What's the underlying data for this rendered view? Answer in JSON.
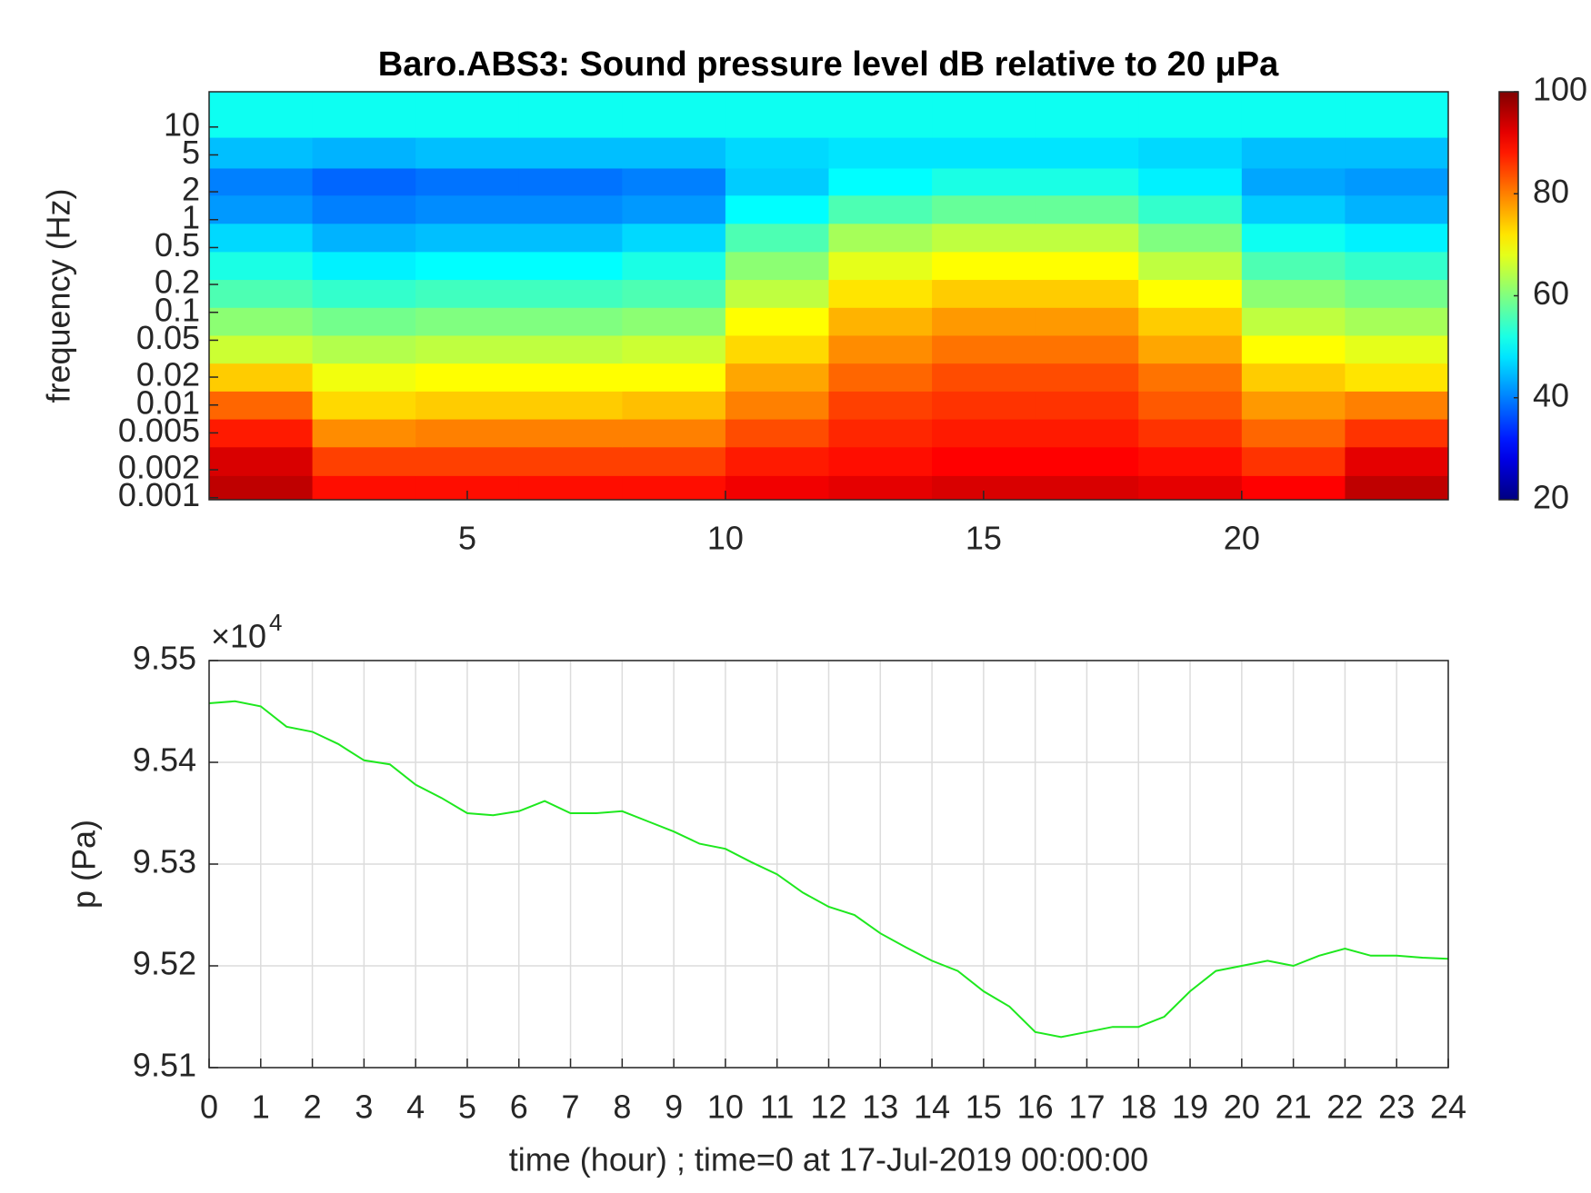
{
  "chart_data": [
    {
      "type": "heatmap",
      "title": "Baro.ABS3: Sound pressure level dB relative to 20 μPa",
      "ylabel": "frequency (Hz)",
      "yscale": "log",
      "colormap": "jet",
      "clim": [
        20,
        100
      ],
      "cticks": [
        20,
        40,
        60,
        80,
        100
      ],
      "xlim": [
        0,
        24
      ],
      "ylim": [
        0.00095,
        24
      ],
      "xticks": [
        5,
        10,
        15,
        20
      ],
      "yticks": [
        0.001,
        0.002,
        0.005,
        0.01,
        0.02,
        0.05,
        0.1,
        0.2,
        0.5,
        1,
        2,
        5,
        10
      ],
      "x": [
        1,
        3,
        5,
        7,
        9,
        11,
        13,
        15,
        17,
        19,
        21,
        23
      ],
      "y": [
        0.0012,
        0.0025,
        0.005,
        0.01,
        0.02,
        0.04,
        0.08,
        0.16,
        0.32,
        0.64,
        1.3,
        2.6,
        5,
        12
      ],
      "z": [
        [
          95,
          89,
          89,
          89,
          89,
          91,
          92,
          93,
          93,
          92,
          90,
          95
        ],
        [
          93,
          85,
          85,
          85,
          85,
          88,
          89,
          90,
          90,
          89,
          86,
          92
        ],
        [
          88,
          79,
          80,
          80,
          80,
          84,
          87,
          88,
          88,
          86,
          82,
          86
        ],
        [
          82,
          73,
          74,
          74,
          75,
          80,
          85,
          86,
          86,
          83,
          78,
          80
        ],
        [
          74,
          69,
          70,
          70,
          70,
          77,
          82,
          84,
          84,
          81,
          74,
          72
        ],
        [
          66,
          64,
          65,
          65,
          66,
          73,
          79,
          81,
          81,
          77,
          70,
          68
        ],
        [
          61,
          59,
          60,
          60,
          61,
          70,
          76,
          78,
          78,
          74,
          65,
          63
        ],
        [
          56,
          54,
          55,
          55,
          56,
          65,
          72,
          74,
          74,
          70,
          61,
          59
        ],
        [
          52,
          49,
          50,
          50,
          52,
          61,
          68,
          70,
          70,
          65,
          56,
          54
        ],
        [
          47,
          44,
          45,
          45,
          47,
          56,
          63,
          65,
          65,
          60,
          51,
          49
        ],
        [
          42,
          40,
          41,
          41,
          42,
          50,
          56,
          58,
          58,
          54,
          46,
          44
        ],
        [
          40,
          38,
          39,
          39,
          40,
          46,
          50,
          52,
          52,
          49,
          43,
          42
        ],
        [
          45,
          44,
          45,
          45,
          45,
          47,
          48,
          48,
          48,
          47,
          45,
          45
        ],
        [
          51,
          51,
          51,
          51,
          51,
          51,
          51,
          51,
          51,
          51,
          51,
          51
        ]
      ]
    },
    {
      "type": "line",
      "xlabel": "time (hour) ; time=0 at 17-Jul-2019 00:00:00",
      "ylabel": "p (Pa)",
      "y_multiplier": {
        "base": "×10",
        "power": "4"
      },
      "color": "#1ee81e",
      "grid": true,
      "xlim": [
        0,
        24
      ],
      "ylim": [
        95100,
        95500
      ],
      "xticks": [
        0,
        1,
        2,
        3,
        4,
        5,
        6,
        7,
        8,
        9,
        10,
        11,
        12,
        13,
        14,
        15,
        16,
        17,
        18,
        19,
        20,
        21,
        22,
        23,
        24
      ],
      "yticks": [
        {
          "value": 95100,
          "label": "9.51"
        },
        {
          "value": 95200,
          "label": "9.52"
        },
        {
          "value": 95300,
          "label": "9.53"
        },
        {
          "value": 95400,
          "label": "9.54"
        },
        {
          "value": 95500,
          "label": "9.55"
        }
      ],
      "x": [
        0,
        0.5,
        1,
        1.5,
        2,
        2.5,
        3,
        3.5,
        4,
        4.5,
        5,
        5.5,
        6,
        6.5,
        7,
        7.5,
        8,
        8.5,
        9,
        9.5,
        10,
        10.5,
        11,
        11.5,
        12,
        12.5,
        13,
        13.5,
        14,
        14.5,
        15,
        15.5,
        16,
        16.5,
        17,
        17.5,
        18,
        18.5,
        19,
        19.5,
        20,
        20.5,
        21,
        21.5,
        22,
        22.5,
        23,
        23.5,
        24
      ],
      "values": [
        95458,
        95460,
        95455,
        95435,
        95430,
        95418,
        95402,
        95398,
        95378,
        95365,
        95350,
        95348,
        95352,
        95362,
        95350,
        95350,
        95352,
        95342,
        95332,
        95320,
        95315,
        95302,
        95290,
        95272,
        95258,
        95250,
        95232,
        95218,
        95205,
        95195,
        95175,
        95160,
        95135,
        95130,
        95135,
        95140,
        95140,
        95150,
        95175,
        95195,
        95200,
        95205,
        95200,
        95210,
        95217,
        95210,
        95210,
        95208,
        95207
      ]
    }
  ]
}
